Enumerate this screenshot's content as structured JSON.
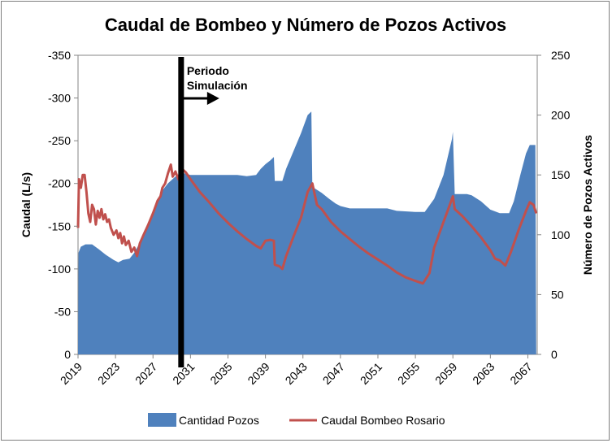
{
  "chart_data": {
    "type": "area",
    "title": "Caudal de Bombeo y Número de Pozos Activos",
    "ylabel": "Caudal (L/s)",
    "y2label": "Número de Pozos Activos",
    "xlim": [
      2019,
      2068
    ],
    "ylim": [
      0,
      -350
    ],
    "y2lim": [
      0,
      250
    ],
    "x_ticks": [
      "2019",
      "2023",
      "2027",
      "2031",
      "2035",
      "2039",
      "2043",
      "2047",
      "2051",
      "2055",
      "2059",
      "2063",
      "2067"
    ],
    "y_ticks": [
      "-350",
      "-300",
      "-250",
      "-200",
      "-150",
      "-100",
      "-50",
      "0"
    ],
    "y2_ticks": [
      "250",
      "200",
      "150",
      "100",
      "50",
      "0"
    ],
    "annotation": {
      "line1": "Periodo",
      "line2": "Simulación",
      "x": 2030
    },
    "colors": {
      "area": "#4f81bd",
      "line": "#c0504d",
      "marker": "#000000"
    },
    "series": [
      {
        "name": "Cantidad Pozos",
        "axis": "right",
        "kind": "area",
        "points": [
          [
            2019,
            0
          ],
          [
            2019.05,
            85
          ],
          [
            2019.3,
            90
          ],
          [
            2019.8,
            92
          ],
          [
            2020.5,
            92
          ],
          [
            2021.2,
            88
          ],
          [
            2022,
            83
          ],
          [
            2022.8,
            79
          ],
          [
            2023.3,
            77
          ],
          [
            2023.8,
            79
          ],
          [
            2024.5,
            80
          ],
          [
            2025,
            85
          ],
          [
            2025.5,
            92
          ],
          [
            2026,
            100
          ],
          [
            2026.5,
            110
          ],
          [
            2027,
            120
          ],
          [
            2027.5,
            130
          ],
          [
            2028,
            137
          ],
          [
            2028.6,
            143
          ],
          [
            2029.3,
            148
          ],
          [
            2030,
            152
          ],
          [
            2031,
            150
          ],
          [
            2032,
            150
          ],
          [
            2034,
            150
          ],
          [
            2036,
            150
          ],
          [
            2037,
            149
          ],
          [
            2038,
            150
          ],
          [
            2038.5,
            155
          ],
          [
            2039,
            159
          ],
          [
            2039.5,
            162
          ],
          [
            2039.9,
            165
          ],
          [
            2040,
            145
          ],
          [
            2040.8,
            145
          ],
          [
            2041.2,
            155
          ],
          [
            2042,
            170
          ],
          [
            2042.8,
            185
          ],
          [
            2043.5,
            200
          ],
          [
            2043.9,
            203
          ],
          [
            2044,
            140
          ],
          [
            2045,
            135
          ],
          [
            2045.8,
            130
          ],
          [
            2046.5,
            126
          ],
          [
            2047,
            124
          ],
          [
            2048,
            122
          ],
          [
            2050,
            122
          ],
          [
            2052,
            122
          ],
          [
            2053,
            120
          ],
          [
            2055,
            119
          ],
          [
            2056,
            119
          ],
          [
            2057,
            130
          ],
          [
            2058,
            150
          ],
          [
            2058.9,
            180
          ],
          [
            2059,
            186
          ],
          [
            2059.2,
            134
          ],
          [
            2060.5,
            134
          ],
          [
            2061,
            133
          ],
          [
            2062,
            128
          ],
          [
            2063,
            121
          ],
          [
            2064,
            118
          ],
          [
            2065,
            118
          ],
          [
            2065.5,
            128
          ],
          [
            2066.2,
            150
          ],
          [
            2066.8,
            168
          ],
          [
            2067.2,
            175
          ],
          [
            2067.8,
            175
          ],
          [
            2067.9,
            0
          ]
        ]
      },
      {
        "name": "Caudal Bombeo Rosario",
        "axis": "left",
        "kind": "line",
        "points": [
          [
            2019,
            -148
          ],
          [
            2019.1,
            -205
          ],
          [
            2019.3,
            -195
          ],
          [
            2019.5,
            -210
          ],
          [
            2019.7,
            -210
          ],
          [
            2019.9,
            -190
          ],
          [
            2020.1,
            -165
          ],
          [
            2020.3,
            -155
          ],
          [
            2020.5,
            -175
          ],
          [
            2020.7,
            -170
          ],
          [
            2020.9,
            -152
          ],
          [
            2021.1,
            -168
          ],
          [
            2021.3,
            -160
          ],
          [
            2021.5,
            -170
          ],
          [
            2021.7,
            -158
          ],
          [
            2021.9,
            -164
          ],
          [
            2022.1,
            -155
          ],
          [
            2022.3,
            -158
          ],
          [
            2022.5,
            -148
          ],
          [
            2022.8,
            -140
          ],
          [
            2023.1,
            -145
          ],
          [
            2023.3,
            -136
          ],
          [
            2023.5,
            -142
          ],
          [
            2023.7,
            -130
          ],
          [
            2023.9,
            -138
          ],
          [
            2024.1,
            -128
          ],
          [
            2024.4,
            -133
          ],
          [
            2024.7,
            -120
          ],
          [
            2025,
            -125
          ],
          [
            2025.3,
            -115
          ],
          [
            2025.6,
            -130
          ],
          [
            2026,
            -140
          ],
          [
            2026.5,
            -152
          ],
          [
            2027,
            -165
          ],
          [
            2027.5,
            -180
          ],
          [
            2027.8,
            -185
          ],
          [
            2028,
            -195
          ],
          [
            2028.3,
            -200
          ],
          [
            2028.6,
            -212
          ],
          [
            2028.9,
            -222
          ],
          [
            2029.1,
            -208
          ],
          [
            2029.4,
            -214
          ],
          [
            2029.7,
            -205
          ],
          [
            2030,
            -218
          ],
          [
            2030.5,
            -213
          ],
          [
            2031,
            -205
          ],
          [
            2032,
            -190
          ],
          [
            2033,
            -178
          ],
          [
            2034,
            -165
          ],
          [
            2035,
            -154
          ],
          [
            2036,
            -144
          ],
          [
            2037,
            -135
          ],
          [
            2038,
            -127
          ],
          [
            2038.5,
            -124
          ],
          [
            2039,
            -133
          ],
          [
            2039.5,
            -134
          ],
          [
            2039.9,
            -133
          ],
          [
            2040,
            -105
          ],
          [
            2040.5,
            -103
          ],
          [
            2040.8,
            -100
          ],
          [
            2041.2,
            -115
          ],
          [
            2042,
            -138
          ],
          [
            2042.8,
            -160
          ],
          [
            2043.5,
            -190
          ],
          [
            2044,
            -200
          ],
          [
            2044.5,
            -175
          ],
          [
            2045,
            -170
          ],
          [
            2046,
            -155
          ],
          [
            2047,
            -144
          ],
          [
            2048,
            -135
          ],
          [
            2049,
            -126
          ],
          [
            2050,
            -118
          ],
          [
            2051,
            -111
          ],
          [
            2052,
            -104
          ],
          [
            2053,
            -96
          ],
          [
            2054,
            -90
          ],
          [
            2055,
            -86
          ],
          [
            2055.8,
            -83
          ],
          [
            2056.5,
            -95
          ],
          [
            2057,
            -125
          ],
          [
            2058,
            -155
          ],
          [
            2058.5,
            -170
          ],
          [
            2059,
            -185
          ],
          [
            2059.2,
            -170
          ],
          [
            2060,
            -162
          ],
          [
            2061,
            -150
          ],
          [
            2062,
            -137
          ],
          [
            2063,
            -122
          ],
          [
            2063.5,
            -112
          ],
          [
            2064,
            -110
          ],
          [
            2064.6,
            -104
          ],
          [
            2065.2,
            -120
          ],
          [
            2066,
            -145
          ],
          [
            2066.8,
            -168
          ],
          [
            2067.2,
            -178
          ],
          [
            2067.6,
            -175
          ],
          [
            2067.9,
            -165
          ]
        ]
      }
    ]
  }
}
